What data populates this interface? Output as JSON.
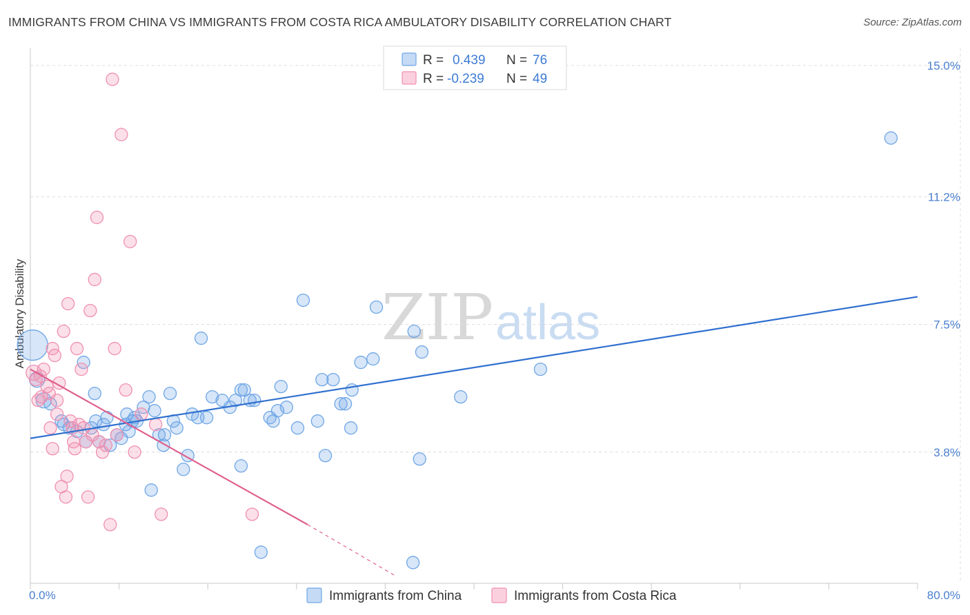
{
  "header": {
    "title": "IMMIGRANTS FROM CHINA VS IMMIGRANTS FROM COSTA RICA AMBULATORY DISABILITY CORRELATION CHART",
    "source": "Source: ZipAtlas.com"
  },
  "watermark": {
    "zip": "ZIP",
    "atlas": "atlas"
  },
  "legend": {
    "rows": [
      {
        "r_label": "R =",
        "r_value": "0.439",
        "n_label": "N =",
        "n_value": "76",
        "color": "#6fa6e6"
      },
      {
        "r_label": "R =",
        "r_value": "-0.239",
        "n_label": "N =",
        "n_value": "49",
        "color": "#f08fb0"
      }
    ]
  },
  "bottom_legend": [
    {
      "label": "Immigrants from China",
      "color": "#6fa6e6"
    },
    {
      "label": "Immigrants from Costa Rica",
      "color": "#f08fb0"
    }
  ],
  "chart_data": {
    "type": "scatter",
    "title": "IMMIGRANTS FROM CHINA VS IMMIGRANTS FROM COSTA RICA AMBULATORY DISABILITY CORRELATION CHART",
    "xlabel": "",
    "ylabel": "Ambulatory Disability",
    "xlim": [
      0,
      80
    ],
    "ylim": [
      0,
      15.5
    ],
    "x_tick_labels": [
      "0.0%",
      "80.0%"
    ],
    "y_ticks": [
      3.8,
      7.5,
      11.2,
      15.0
    ],
    "y_tick_labels": [
      "3.8%",
      "7.5%",
      "11.2%",
      "15.0%"
    ],
    "grid": true,
    "series": [
      {
        "name": "Immigrants from China",
        "color": "#6fa6e6",
        "line_color": "#2f6fcf",
        "trend": {
          "x0": 0,
          "y0": 4.2,
          "x1": 80,
          "y1": 8.3
        },
        "points": [
          [
            0.2,
            6.9,
            22
          ],
          [
            0.6,
            5.9,
            11
          ],
          [
            1.2,
            5.3,
            11
          ],
          [
            1.8,
            5.2,
            9
          ],
          [
            2.8,
            4.7,
            9
          ],
          [
            3.0,
            4.6,
            9
          ],
          [
            3.5,
            4.5,
            9
          ],
          [
            4.2,
            4.4,
            9
          ],
          [
            4.8,
            6.4,
            9
          ],
          [
            5.0,
            4.1,
            9
          ],
          [
            5.5,
            4.5,
            9
          ],
          [
            5.8,
            5.5,
            9
          ],
          [
            6.2,
            4.1,
            9
          ],
          [
            6.6,
            4.6,
            9
          ],
          [
            6.9,
            4.8,
            9
          ],
          [
            7.2,
            4.0,
            9
          ],
          [
            7.8,
            4.3,
            9
          ],
          [
            8.2,
            4.2,
            9
          ],
          [
            8.6,
            4.6,
            9
          ],
          [
            8.9,
            4.4,
            9
          ],
          [
            9.2,
            4.7,
            9
          ],
          [
            9.6,
            4.7,
            9
          ],
          [
            10.2,
            5.1,
            9
          ],
          [
            10.7,
            5.4,
            9
          ],
          [
            11.2,
            5.0,
            9
          ],
          [
            11.6,
            4.3,
            9
          ],
          [
            12.1,
            4.3,
            9
          ],
          [
            12.6,
            5.5,
            9
          ],
          [
            12.9,
            4.7,
            9
          ],
          [
            13.2,
            4.5,
            9
          ],
          [
            13.8,
            3.3,
            9
          ],
          [
            14.2,
            3.7,
            9
          ],
          [
            14.6,
            4.9,
            9
          ],
          [
            15.1,
            4.8,
            9
          ],
          [
            15.4,
            7.1,
            9
          ],
          [
            15.9,
            4.8,
            9
          ],
          [
            16.4,
            5.4,
            9
          ],
          [
            17.3,
            5.3,
            9
          ],
          [
            18.0,
            5.1,
            9
          ],
          [
            18.5,
            5.3,
            9
          ],
          [
            19.0,
            5.6,
            9
          ],
          [
            19.3,
            5.6,
            9
          ],
          [
            19.8,
            5.3,
            9
          ],
          [
            20.2,
            5.3,
            9
          ],
          [
            19.0,
            3.4,
            9
          ],
          [
            21.6,
            4.8,
            9
          ],
          [
            21.9,
            4.7,
            9
          ],
          [
            22.3,
            5.0,
            9
          ],
          [
            22.6,
            5.7,
            9
          ],
          [
            23.1,
            5.1,
            9
          ],
          [
            24.1,
            4.5,
            9
          ],
          [
            24.6,
            8.2,
            9
          ],
          [
            25.9,
            4.7,
            9
          ],
          [
            26.3,
            5.9,
            9
          ],
          [
            26.6,
            3.7,
            9
          ],
          [
            27.3,
            5.9,
            9
          ],
          [
            28.0,
            5.2,
            9
          ],
          [
            28.4,
            5.2,
            9
          ],
          [
            29.0,
            5.6,
            9
          ],
          [
            29.8,
            6.4,
            9
          ],
          [
            30.9,
            6.5,
            9
          ],
          [
            31.2,
            8.0,
            9
          ],
          [
            34.6,
            7.3,
            9
          ],
          [
            35.1,
            3.6,
            9
          ],
          [
            35.3,
            6.7,
            9
          ],
          [
            38.8,
            5.4,
            9
          ],
          [
            46.0,
            6.2,
            9
          ],
          [
            77.6,
            12.9,
            9
          ],
          [
            10.9,
            2.7,
            9
          ],
          [
            20.8,
            0.9,
            9
          ],
          [
            34.5,
            0.6,
            9
          ],
          [
            28.9,
            4.5,
            9
          ],
          [
            9.4,
            4.8,
            9
          ],
          [
            5.9,
            4.7,
            9
          ],
          [
            8.7,
            4.9,
            9
          ],
          [
            12.0,
            4.0,
            9
          ]
        ]
      },
      {
        "name": "Immigrants from Costa Rica",
        "color": "#f08fb0",
        "line_color": "#e0608e",
        "trend": {
          "x0": 0,
          "y0": 6.2,
          "x1": 25,
          "y1": 1.7,
          "dash_to_x": 33,
          "dash_to_y": 0.2
        },
        "points": [
          [
            0.3,
            6.1,
            11
          ],
          [
            0.5,
            5.9,
            9
          ],
          [
            0.7,
            5.3,
            9
          ],
          [
            0.9,
            6.0,
            9
          ],
          [
            1.2,
            6.2,
            9
          ],
          [
            1.5,
            5.7,
            9
          ],
          [
            1.7,
            5.5,
            9
          ],
          [
            2.0,
            6.8,
            9
          ],
          [
            2.2,
            6.6,
            9
          ],
          [
            2.4,
            5.3,
            9
          ],
          [
            2.6,
            5.8,
            9
          ],
          [
            1.8,
            4.5,
            9
          ],
          [
            2.0,
            3.9,
            9
          ],
          [
            2.4,
            4.9,
            9
          ],
          [
            2.8,
            2.8,
            9
          ],
          [
            3.0,
            7.3,
            9
          ],
          [
            3.2,
            2.5,
            9
          ],
          [
            3.3,
            3.1,
            9
          ],
          [
            3.4,
            8.1,
            9
          ],
          [
            3.6,
            4.7,
            9
          ],
          [
            3.8,
            4.5,
            9
          ],
          [
            4.0,
            3.9,
            9
          ],
          [
            4.2,
            6.8,
            9
          ],
          [
            4.4,
            4.6,
            9
          ],
          [
            4.6,
            6.2,
            9
          ],
          [
            4.8,
            4.5,
            9
          ],
          [
            5.0,
            4.1,
            9
          ],
          [
            5.2,
            2.5,
            9
          ],
          [
            5.4,
            7.9,
            9
          ],
          [
            5.6,
            4.3,
            9
          ],
          [
            5.8,
            8.8,
            9
          ],
          [
            6.0,
            10.6,
            9
          ],
          [
            6.2,
            4.1,
            9
          ],
          [
            6.5,
            3.8,
            9
          ],
          [
            6.8,
            4.0,
            9
          ],
          [
            7.2,
            1.7,
            9
          ],
          [
            7.4,
            14.6,
            9
          ],
          [
            7.6,
            6.8,
            9
          ],
          [
            7.8,
            4.3,
            9
          ],
          [
            8.2,
            13.0,
            9
          ],
          [
            8.6,
            5.6,
            9
          ],
          [
            9.0,
            9.9,
            9
          ],
          [
            9.4,
            3.8,
            9
          ],
          [
            10.0,
            4.9,
            9
          ],
          [
            1.0,
            5.4,
            9
          ],
          [
            11.3,
            4.6,
            9
          ],
          [
            11.8,
            2.0,
            9
          ],
          [
            20.0,
            2.0,
            9
          ],
          [
            3.9,
            4.1,
            9
          ]
        ]
      }
    ]
  }
}
